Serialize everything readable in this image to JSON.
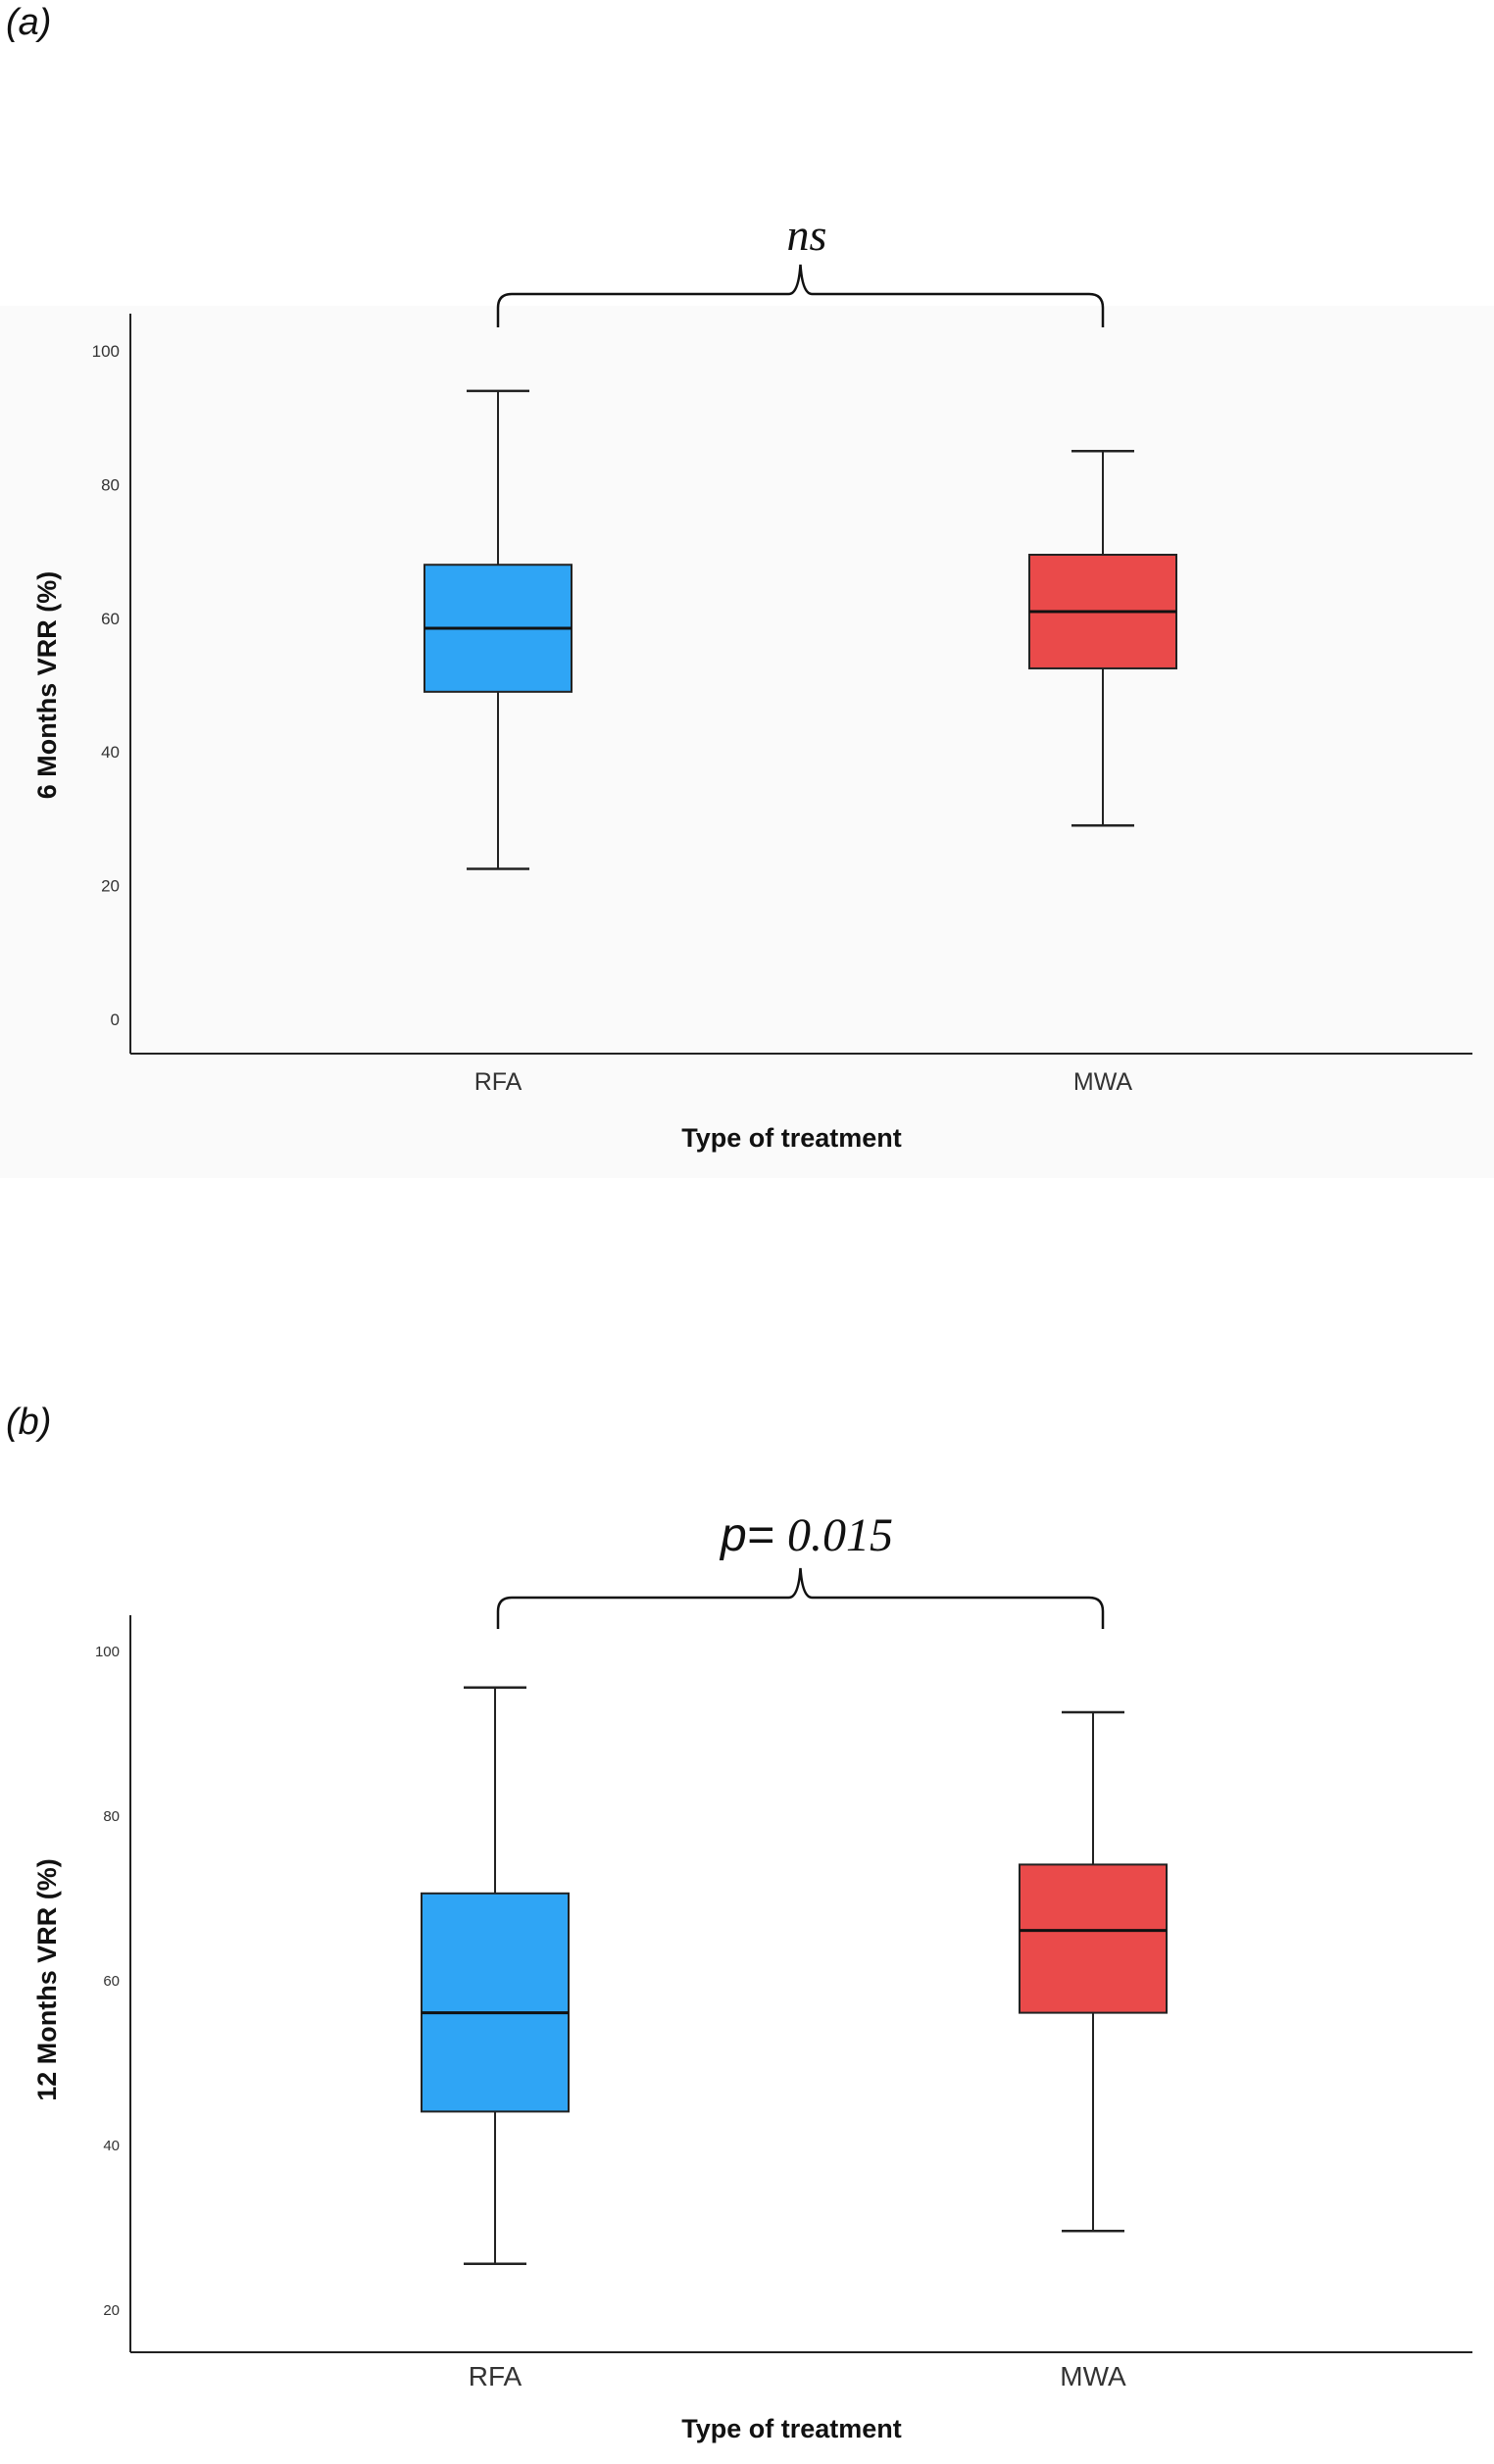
{
  "panels": [
    {
      "label": "(a)"
    },
    {
      "label": "(b)"
    }
  ],
  "chart_data": [
    {
      "type": "boxplot",
      "panel": "(a)",
      "annotation": "ns",
      "xlabel": "Type of treatment",
      "ylabel": "6 Months VRR (%)",
      "ylim": [
        -5,
        105
      ],
      "yticks": [
        0,
        20,
        40,
        60,
        80,
        100
      ],
      "categories": [
        "RFA",
        "MWA"
      ],
      "series": [
        {
          "name": "RFA",
          "color": "#2FA5F5",
          "min": 22.5,
          "q1": 49,
          "median": 58.5,
          "q3": 68,
          "max": 94
        },
        {
          "name": "MWA",
          "color": "#EA4A4A",
          "min": 29,
          "q1": 52.5,
          "median": 61,
          "q3": 69.5,
          "max": 85
        }
      ]
    },
    {
      "type": "boxplot",
      "panel": "(b)",
      "annotation": "p= 0.015",
      "annotation_prefix": "p=",
      "annotation_value": "0.015",
      "xlabel": "Type of treatment",
      "ylabel": "12 Months VRR (%)",
      "ylim": [
        15,
        106
      ],
      "yticks": [
        20,
        40,
        60,
        80,
        100
      ],
      "categories": [
        "RFA",
        "MWA"
      ],
      "series": [
        {
          "name": "RFA",
          "color": "#2FA5F5",
          "min": 25.5,
          "q1": 44,
          "median": 56,
          "q3": 70.5,
          "max": 95.5
        },
        {
          "name": "MWA",
          "color": "#EA4A4A",
          "min": 29.5,
          "q1": 56,
          "median": 66,
          "q3": 74,
          "max": 92.5
        }
      ]
    }
  ]
}
